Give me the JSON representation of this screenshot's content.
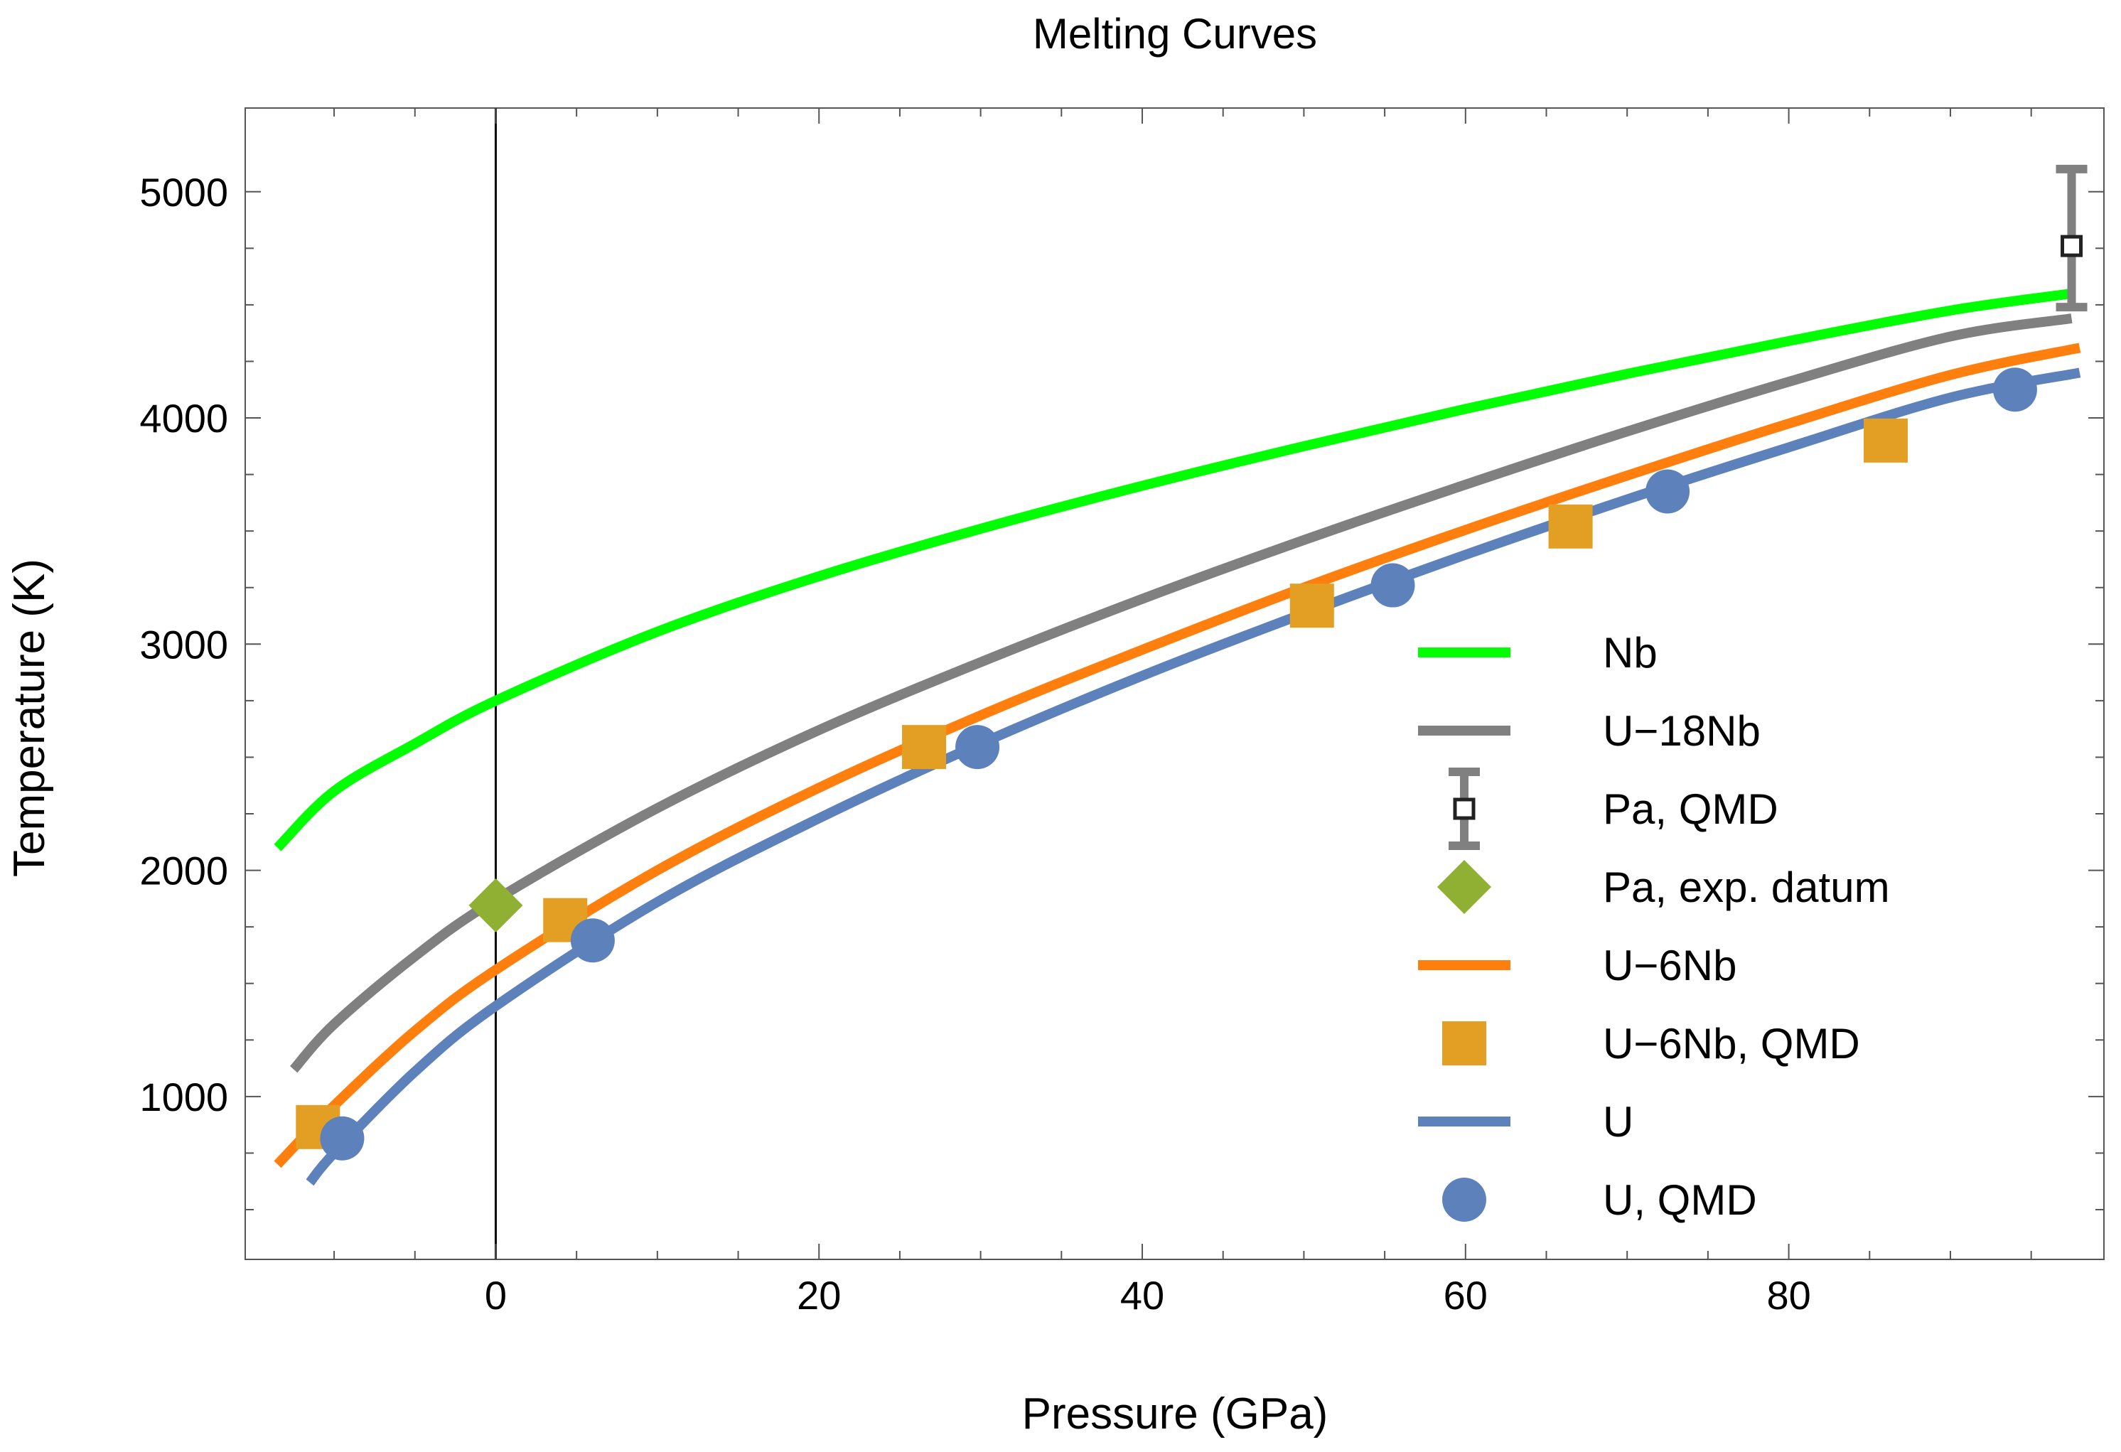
{
  "chart_data": {
    "type": "line",
    "title": "Melting Curves",
    "xlabel": "Pressure (GPa)",
    "ylabel": "Temperature (K)",
    "xlim": [
      -15.5,
      99.5
    ],
    "ylim": [
      280,
      5370
    ],
    "x_ticks": [
      0,
      20,
      40,
      60,
      80
    ],
    "y_ticks": [
      1000,
      2000,
      3000,
      4000,
      5000
    ],
    "grid": false,
    "legend_position": "lower-right",
    "series": [
      {
        "name": "Nb",
        "kind": "line",
        "color": "#00ff00",
        "x": [
          -13.5,
          -10,
          -5,
          0,
          10,
          20,
          30,
          40,
          50,
          60,
          70,
          80,
          90,
          97.5
        ],
        "y": [
          2100,
          2350,
          2560,
          2750,
          3055,
          3300,
          3510,
          3700,
          3875,
          4040,
          4195,
          4340,
          4475,
          4550
        ]
      },
      {
        "name": "U-18Nb",
        "kind": "line",
        "color": "#808080",
        "x": [
          -12.5,
          -10,
          -5,
          0,
          10,
          20,
          30,
          40,
          50,
          60,
          70,
          80,
          90,
          97.5
        ],
        "y": [
          1120,
          1320,
          1620,
          1870,
          2275,
          2620,
          2920,
          3200,
          3460,
          3705,
          3940,
          4160,
          4360,
          4440
        ]
      },
      {
        "name": "Pa, QMD",
        "kind": "errorbar",
        "color": "#808080",
        "x": [
          97.5
        ],
        "y": [
          4760
        ],
        "err_low": [
          4490
        ],
        "err_high": [
          5100
        ]
      },
      {
        "name": "Pa, exp. datum",
        "kind": "marker",
        "marker": "diamond",
        "color": "#8fb032",
        "x": [
          0
        ],
        "y": [
          1845
        ]
      },
      {
        "name": "U-6Nb",
        "kind": "line",
        "color": "#ff7f0e",
        "x": [
          -13.5,
          -10,
          -5,
          0,
          10,
          20,
          30,
          40,
          50,
          60,
          70,
          80,
          90,
          98
        ],
        "y": [
          700,
          960,
          1290,
          1560,
          2000,
          2365,
          2685,
          2975,
          3250,
          3505,
          3745,
          3975,
          4190,
          4310
        ]
      },
      {
        "name": "U-6Nb, QMD",
        "kind": "marker",
        "marker": "square",
        "color": "#e29f23",
        "x": [
          -11,
          4.3,
          26.5,
          50.5,
          66.5,
          86
        ],
        "y": [
          865,
          1780,
          2545,
          3170,
          3520,
          3900
        ]
      },
      {
        "name": "U",
        "kind": "line",
        "color": "#5d81ba",
        "x": [
          -11.5,
          -10,
          -5,
          0,
          10,
          20,
          30,
          40,
          50,
          60,
          70,
          80,
          90,
          98
        ],
        "y": [
          620,
          750,
          1110,
          1400,
          1860,
          2230,
          2560,
          2860,
          3135,
          3395,
          3640,
          3870,
          4090,
          4200
        ]
      },
      {
        "name": "U, QMD",
        "kind": "marker",
        "marker": "circle",
        "color": "#5d81ba",
        "x": [
          -9.5,
          6,
          29.8,
          55.5,
          72.5,
          94
        ],
        "y": [
          815,
          1690,
          2545,
          3260,
          3675,
          4125
        ]
      }
    ]
  }
}
